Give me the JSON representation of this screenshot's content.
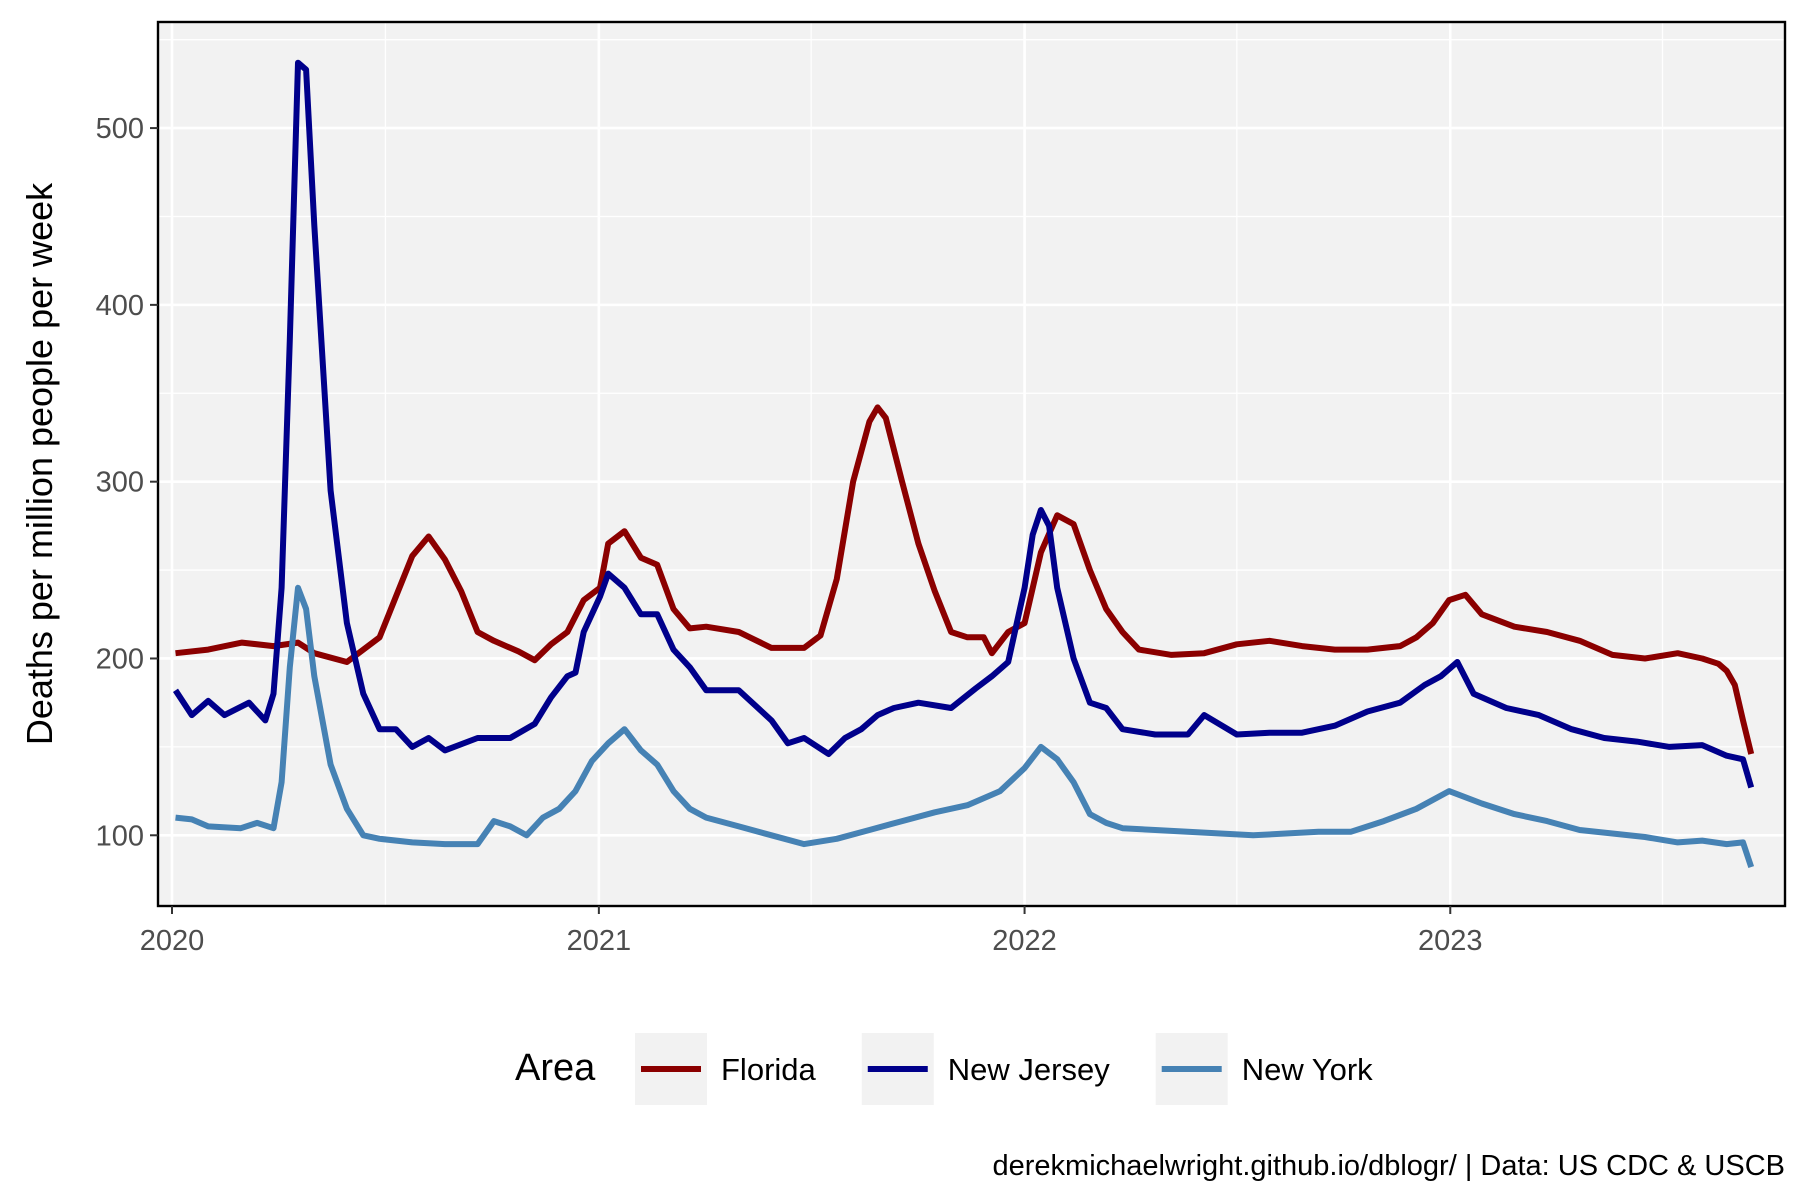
{
  "chart_data": {
    "type": "line",
    "title": "",
    "xlabel": "",
    "ylabel": "Deaths per million people per week",
    "xlim": [
      "2019-12-20",
      "2023-10-15"
    ],
    "ylim": [
      60,
      560
    ],
    "x_ticks": [
      "2020",
      "2021",
      "2022",
      "2023"
    ],
    "y_ticks": [
      100,
      200,
      300,
      400,
      500
    ],
    "grid": true,
    "legend": {
      "title": "Area",
      "placement": "bottom"
    },
    "caption": "derekmichaelwright.github.io/dblogr/ | Data: US CDC & USCB",
    "series": [
      {
        "name": "Florida",
        "color": "#8B0000",
        "points": [
          [
            "2020-01-04",
            203
          ],
          [
            "2020-02-01",
            205
          ],
          [
            "2020-03-01",
            209
          ],
          [
            "2020-03-28",
            207
          ],
          [
            "2020-04-18",
            209
          ],
          [
            "2020-05-02",
            203
          ],
          [
            "2020-05-30",
            198
          ],
          [
            "2020-06-27",
            212
          ],
          [
            "2020-07-11",
            235
          ],
          [
            "2020-07-25",
            258
          ],
          [
            "2020-08-08",
            269
          ],
          [
            "2020-08-22",
            256
          ],
          [
            "2020-09-05",
            238
          ],
          [
            "2020-09-19",
            215
          ],
          [
            "2020-10-03",
            210
          ],
          [
            "2020-10-24",
            204
          ],
          [
            "2020-11-07",
            199
          ],
          [
            "2020-11-21",
            208
          ],
          [
            "2020-12-05",
            215
          ],
          [
            "2020-12-19",
            233
          ],
          [
            "2021-01-02",
            240
          ],
          [
            "2021-01-09",
            265
          ],
          [
            "2021-01-23",
            272
          ],
          [
            "2021-02-06",
            257
          ],
          [
            "2021-02-20",
            253
          ],
          [
            "2021-03-06",
            228
          ],
          [
            "2021-03-20",
            217
          ],
          [
            "2021-04-03",
            218
          ],
          [
            "2021-05-01",
            215
          ],
          [
            "2021-05-29",
            206
          ],
          [
            "2021-06-26",
            206
          ],
          [
            "2021-07-10",
            213
          ],
          [
            "2021-07-24",
            245
          ],
          [
            "2021-08-07",
            300
          ],
          [
            "2021-08-21",
            334
          ],
          [
            "2021-08-28",
            342
          ],
          [
            "2021-09-04",
            336
          ],
          [
            "2021-09-18",
            300
          ],
          [
            "2021-10-02",
            265
          ],
          [
            "2021-10-16",
            238
          ],
          [
            "2021-10-30",
            215
          ],
          [
            "2021-11-13",
            212
          ],
          [
            "2021-11-27",
            212
          ],
          [
            "2021-12-04",
            203
          ],
          [
            "2021-12-18",
            215
          ],
          [
            "2022-01-01",
            220
          ],
          [
            "2022-01-15",
            260
          ],
          [
            "2022-01-29",
            281
          ],
          [
            "2022-02-12",
            276
          ],
          [
            "2022-02-26",
            250
          ],
          [
            "2022-03-12",
            228
          ],
          [
            "2022-03-26",
            215
          ],
          [
            "2022-04-09",
            205
          ],
          [
            "2022-05-07",
            202
          ],
          [
            "2022-06-04",
            203
          ],
          [
            "2022-07-02",
            208
          ],
          [
            "2022-07-30",
            210
          ],
          [
            "2022-08-27",
            207
          ],
          [
            "2022-09-24",
            205
          ],
          [
            "2022-10-22",
            205
          ],
          [
            "2022-11-19",
            207
          ],
          [
            "2022-12-03",
            212
          ],
          [
            "2022-12-17",
            220
          ],
          [
            "2022-12-31",
            233
          ],
          [
            "2023-01-14",
            236
          ],
          [
            "2023-01-28",
            225
          ],
          [
            "2023-02-25",
            218
          ],
          [
            "2023-03-25",
            215
          ],
          [
            "2023-04-22",
            210
          ],
          [
            "2023-05-20",
            202
          ],
          [
            "2023-06-17",
            200
          ],
          [
            "2023-07-15",
            203
          ],
          [
            "2023-08-05",
            200
          ],
          [
            "2023-08-19",
            197
          ],
          [
            "2023-08-26",
            193
          ],
          [
            "2023-09-02",
            185
          ],
          [
            "2023-09-09",
            165
          ],
          [
            "2023-09-16",
            146
          ]
        ]
      },
      {
        "name": "New Jersey",
        "color": "#00008B",
        "points": [
          [
            "2020-01-04",
            182
          ],
          [
            "2020-01-18",
            168
          ],
          [
            "2020-02-01",
            176
          ],
          [
            "2020-02-15",
            168
          ],
          [
            "2020-03-07",
            175
          ],
          [
            "2020-03-21",
            165
          ],
          [
            "2020-03-28",
            180
          ],
          [
            "2020-04-04",
            240
          ],
          [
            "2020-04-11",
            380
          ],
          [
            "2020-04-18",
            537
          ],
          [
            "2020-04-25",
            533
          ],
          [
            "2020-05-02",
            445
          ],
          [
            "2020-05-16",
            295
          ],
          [
            "2020-05-30",
            220
          ],
          [
            "2020-06-13",
            180
          ],
          [
            "2020-06-27",
            160
          ],
          [
            "2020-07-11",
            160
          ],
          [
            "2020-07-25",
            150
          ],
          [
            "2020-08-08",
            155
          ],
          [
            "2020-08-22",
            148
          ],
          [
            "2020-09-19",
            155
          ],
          [
            "2020-10-17",
            155
          ],
          [
            "2020-11-07",
            163
          ],
          [
            "2020-11-21",
            178
          ],
          [
            "2020-12-05",
            190
          ],
          [
            "2020-12-12",
            192
          ],
          [
            "2020-12-19",
            215
          ],
          [
            "2021-01-02",
            235
          ],
          [
            "2021-01-09",
            248
          ],
          [
            "2021-01-23",
            240
          ],
          [
            "2021-02-06",
            225
          ],
          [
            "2021-02-20",
            225
          ],
          [
            "2021-03-06",
            205
          ],
          [
            "2021-03-20",
            195
          ],
          [
            "2021-04-03",
            182
          ],
          [
            "2021-05-01",
            182
          ],
          [
            "2021-05-29",
            165
          ],
          [
            "2021-06-12",
            152
          ],
          [
            "2021-06-26",
            155
          ],
          [
            "2021-07-17",
            146
          ],
          [
            "2021-07-31",
            155
          ],
          [
            "2021-08-14",
            160
          ],
          [
            "2021-08-28",
            168
          ],
          [
            "2021-09-11",
            172
          ],
          [
            "2021-10-02",
            175
          ],
          [
            "2021-10-30",
            172
          ],
          [
            "2021-11-20",
            183
          ],
          [
            "2021-12-04",
            190
          ],
          [
            "2021-12-18",
            198
          ],
          [
            "2022-01-01",
            240
          ],
          [
            "2022-01-08",
            270
          ],
          [
            "2022-01-15",
            284
          ],
          [
            "2022-01-22",
            275
          ],
          [
            "2022-01-29",
            240
          ],
          [
            "2022-02-12",
            200
          ],
          [
            "2022-02-26",
            175
          ],
          [
            "2022-03-12",
            172
          ],
          [
            "2022-03-26",
            160
          ],
          [
            "2022-04-23",
            157
          ],
          [
            "2022-05-21",
            157
          ],
          [
            "2022-06-04",
            168
          ],
          [
            "2022-07-02",
            157
          ],
          [
            "2022-07-30",
            158
          ],
          [
            "2022-08-27",
            158
          ],
          [
            "2022-09-24",
            162
          ],
          [
            "2022-10-22",
            170
          ],
          [
            "2022-11-19",
            175
          ],
          [
            "2022-12-10",
            185
          ],
          [
            "2022-12-24",
            190
          ],
          [
            "2023-01-07",
            198
          ],
          [
            "2023-01-21",
            180
          ],
          [
            "2023-02-18",
            172
          ],
          [
            "2023-03-18",
            168
          ],
          [
            "2023-04-15",
            160
          ],
          [
            "2023-05-13",
            155
          ],
          [
            "2023-06-10",
            153
          ],
          [
            "2023-07-08",
            150
          ],
          [
            "2023-08-05",
            151
          ],
          [
            "2023-08-26",
            145
          ],
          [
            "2023-09-09",
            143
          ],
          [
            "2023-09-16",
            127
          ]
        ]
      },
      {
        "name": "New York",
        "color": "#4682B4",
        "points": [
          [
            "2020-01-04",
            110
          ],
          [
            "2020-01-18",
            109
          ],
          [
            "2020-02-01",
            105
          ],
          [
            "2020-02-29",
            104
          ],
          [
            "2020-03-14",
            107
          ],
          [
            "2020-03-28",
            104
          ],
          [
            "2020-04-04",
            130
          ],
          [
            "2020-04-11",
            195
          ],
          [
            "2020-04-18",
            240
          ],
          [
            "2020-04-25",
            228
          ],
          [
            "2020-05-02",
            190
          ],
          [
            "2020-05-16",
            140
          ],
          [
            "2020-05-30",
            115
          ],
          [
            "2020-06-13",
            100
          ],
          [
            "2020-06-27",
            98
          ],
          [
            "2020-07-25",
            96
          ],
          [
            "2020-08-22",
            95
          ],
          [
            "2020-09-19",
            95
          ],
          [
            "2020-10-03",
            108
          ],
          [
            "2020-10-17",
            105
          ],
          [
            "2020-10-31",
            100
          ],
          [
            "2020-11-14",
            110
          ],
          [
            "2020-11-28",
            115
          ],
          [
            "2020-12-12",
            125
          ],
          [
            "2020-12-26",
            142
          ],
          [
            "2021-01-09",
            152
          ],
          [
            "2021-01-23",
            160
          ],
          [
            "2021-02-06",
            148
          ],
          [
            "2021-02-20",
            140
          ],
          [
            "2021-03-06",
            125
          ],
          [
            "2021-03-20",
            115
          ],
          [
            "2021-04-03",
            110
          ],
          [
            "2021-05-01",
            105
          ],
          [
            "2021-05-29",
            100
          ],
          [
            "2021-06-26",
            95
          ],
          [
            "2021-07-24",
            98
          ],
          [
            "2021-08-21",
            103
          ],
          [
            "2021-09-18",
            108
          ],
          [
            "2021-10-16",
            113
          ],
          [
            "2021-11-13",
            117
          ],
          [
            "2021-12-11",
            125
          ],
          [
            "2022-01-01",
            138
          ],
          [
            "2022-01-15",
            150
          ],
          [
            "2022-01-29",
            143
          ],
          [
            "2022-02-12",
            130
          ],
          [
            "2022-02-26",
            112
          ],
          [
            "2022-03-12",
            107
          ],
          [
            "2022-03-26",
            104
          ],
          [
            "2022-04-23",
            103
          ],
          [
            "2022-05-21",
            102
          ],
          [
            "2022-06-18",
            101
          ],
          [
            "2022-07-16",
            100
          ],
          [
            "2022-08-13",
            101
          ],
          [
            "2022-09-10",
            102
          ],
          [
            "2022-10-08",
            102
          ],
          [
            "2022-11-05",
            108
          ],
          [
            "2022-12-03",
            115
          ],
          [
            "2022-12-31",
            125
          ],
          [
            "2023-01-28",
            118
          ],
          [
            "2023-02-25",
            112
          ],
          [
            "2023-03-25",
            108
          ],
          [
            "2023-04-22",
            103
          ],
          [
            "2023-05-20",
            101
          ],
          [
            "2023-06-17",
            99
          ],
          [
            "2023-07-15",
            96
          ],
          [
            "2023-08-05",
            97
          ],
          [
            "2023-08-26",
            95
          ],
          [
            "2023-09-09",
            96
          ],
          [
            "2023-09-16",
            82
          ]
        ]
      }
    ]
  }
}
